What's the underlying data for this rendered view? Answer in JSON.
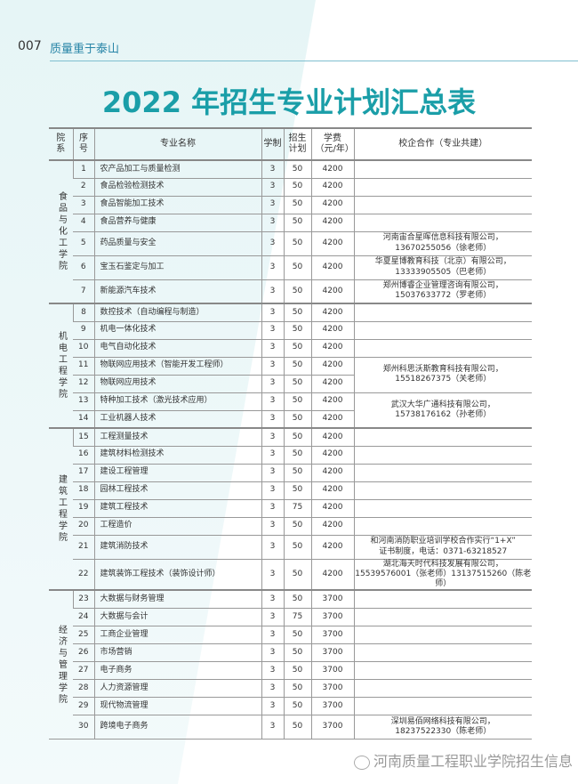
{
  "header": {
    "page_number": "007",
    "section": "质量重于泰山"
  },
  "title": "2022 年招生专业计划汇总表",
  "columns": [
    "院系",
    "序号",
    "专业名称",
    "学制",
    "招生计划",
    "学费（元/年）",
    "校企合作（专业共建）"
  ],
  "departments": [
    {
      "name": "食品与化工学院",
      "rows": [
        [
          "1",
          "农产品加工与质量检测",
          "3",
          "50",
          "4200"
        ],
        [
          "2",
          "食品检验检测技术",
          "3",
          "50",
          "4200"
        ],
        [
          "3",
          "食品智能加工技术",
          "3",
          "50",
          "4200"
        ],
        [
          "4",
          "食品营养与健康",
          "3",
          "50",
          "4200"
        ],
        [
          "5",
          "药品质量与安全",
          "3",
          "50",
          "4200"
        ],
        [
          "6",
          "宝玉石鉴定与加工",
          "3",
          "50",
          "4200"
        ],
        [
          "7",
          "新能源汽车技术",
          "3",
          "50",
          "4200"
        ]
      ]
    },
    {
      "name": "机电工程学院",
      "rows": [
        [
          "8",
          "数控技术（自动编程与制造）",
          "3",
          "50",
          "4200"
        ],
        [
          "9",
          "机电一体化技术",
          "3",
          "50",
          "4200"
        ],
        [
          "10",
          "电气自动化技术",
          "3",
          "50",
          "4200"
        ],
        [
          "11",
          "物联网应用技术（智能开发工程师）",
          "3",
          "50",
          "4200"
        ],
        [
          "12",
          "物联网应用技术",
          "3",
          "50",
          "4200"
        ],
        [
          "13",
          "特种加工技术（激光技术应用）",
          "3",
          "50",
          "4200"
        ],
        [
          "14",
          "工业机器人技术",
          "3",
          "50",
          "4200"
        ]
      ]
    },
    {
      "name": "建筑工程学院",
      "rows": [
        [
          "15",
          "工程测量技术",
          "3",
          "50",
          "4200"
        ],
        [
          "16",
          "建筑材料检测技术",
          "3",
          "50",
          "4200"
        ],
        [
          "17",
          "建设工程管理",
          "3",
          "50",
          "4200"
        ],
        [
          "18",
          "园林工程技术",
          "3",
          "50",
          "4200"
        ],
        [
          "19",
          "建筑工程技术",
          "3",
          "75",
          "4200"
        ],
        [
          "20",
          "工程造价",
          "3",
          "50",
          "4200"
        ],
        [
          "21",
          "建筑消防技术",
          "3",
          "50",
          "4200"
        ],
        [
          "22",
          "建筑装饰工程技术（装饰设计师）",
          "3",
          "50",
          "4200"
        ]
      ]
    },
    {
      "name": "经济与管理学院",
      "rows": [
        [
          "23",
          "大数据与财务管理",
          "3",
          "50",
          "3700"
        ],
        [
          "24",
          "大数据与会计",
          "3",
          "75",
          "3700"
        ],
        [
          "25",
          "工商企业管理",
          "3",
          "50",
          "3700"
        ],
        [
          "26",
          "市场营销",
          "3",
          "50",
          "3700"
        ],
        [
          "27",
          "电子商务",
          "3",
          "50",
          "3700"
        ],
        [
          "28",
          "人力资源管理",
          "3",
          "50",
          "3700"
        ],
        [
          "29",
          "现代物流管理",
          "3",
          "50",
          "3700"
        ],
        [
          "30",
          "跨境电子商务",
          "3",
          "50",
          "3700"
        ]
      ]
    }
  ],
  "partners": {
    "5": "河南宙合星晖信息科技有限公司，\n13670255056（徐老师）",
    "6": "华夏星博教育科技（北京）有限公司，\n13333905505（巴老师）",
    "7": "郑州博睿企业管理咨询有限公司，\n15037633772（罗老师）",
    "11": "郑州科思沃斯教育科技有限公司，\n15518267375（关老师）",
    "13": "武汉大华广通科技有限公司，\n15738176162（孙老师）",
    "21": "和河南消防职业培训学校合作实行“1+X”\n证书制度，电话：0371-63218527",
    "22": "湖北海天时代科技发展有限公司，\n15539576001（张老师）13137515260（陈老师）",
    "30": "深圳易佰网络科技有限公司，\n18237522330（陈老师）"
  },
  "watermark": "河南质量工程职业学院招生信息"
}
